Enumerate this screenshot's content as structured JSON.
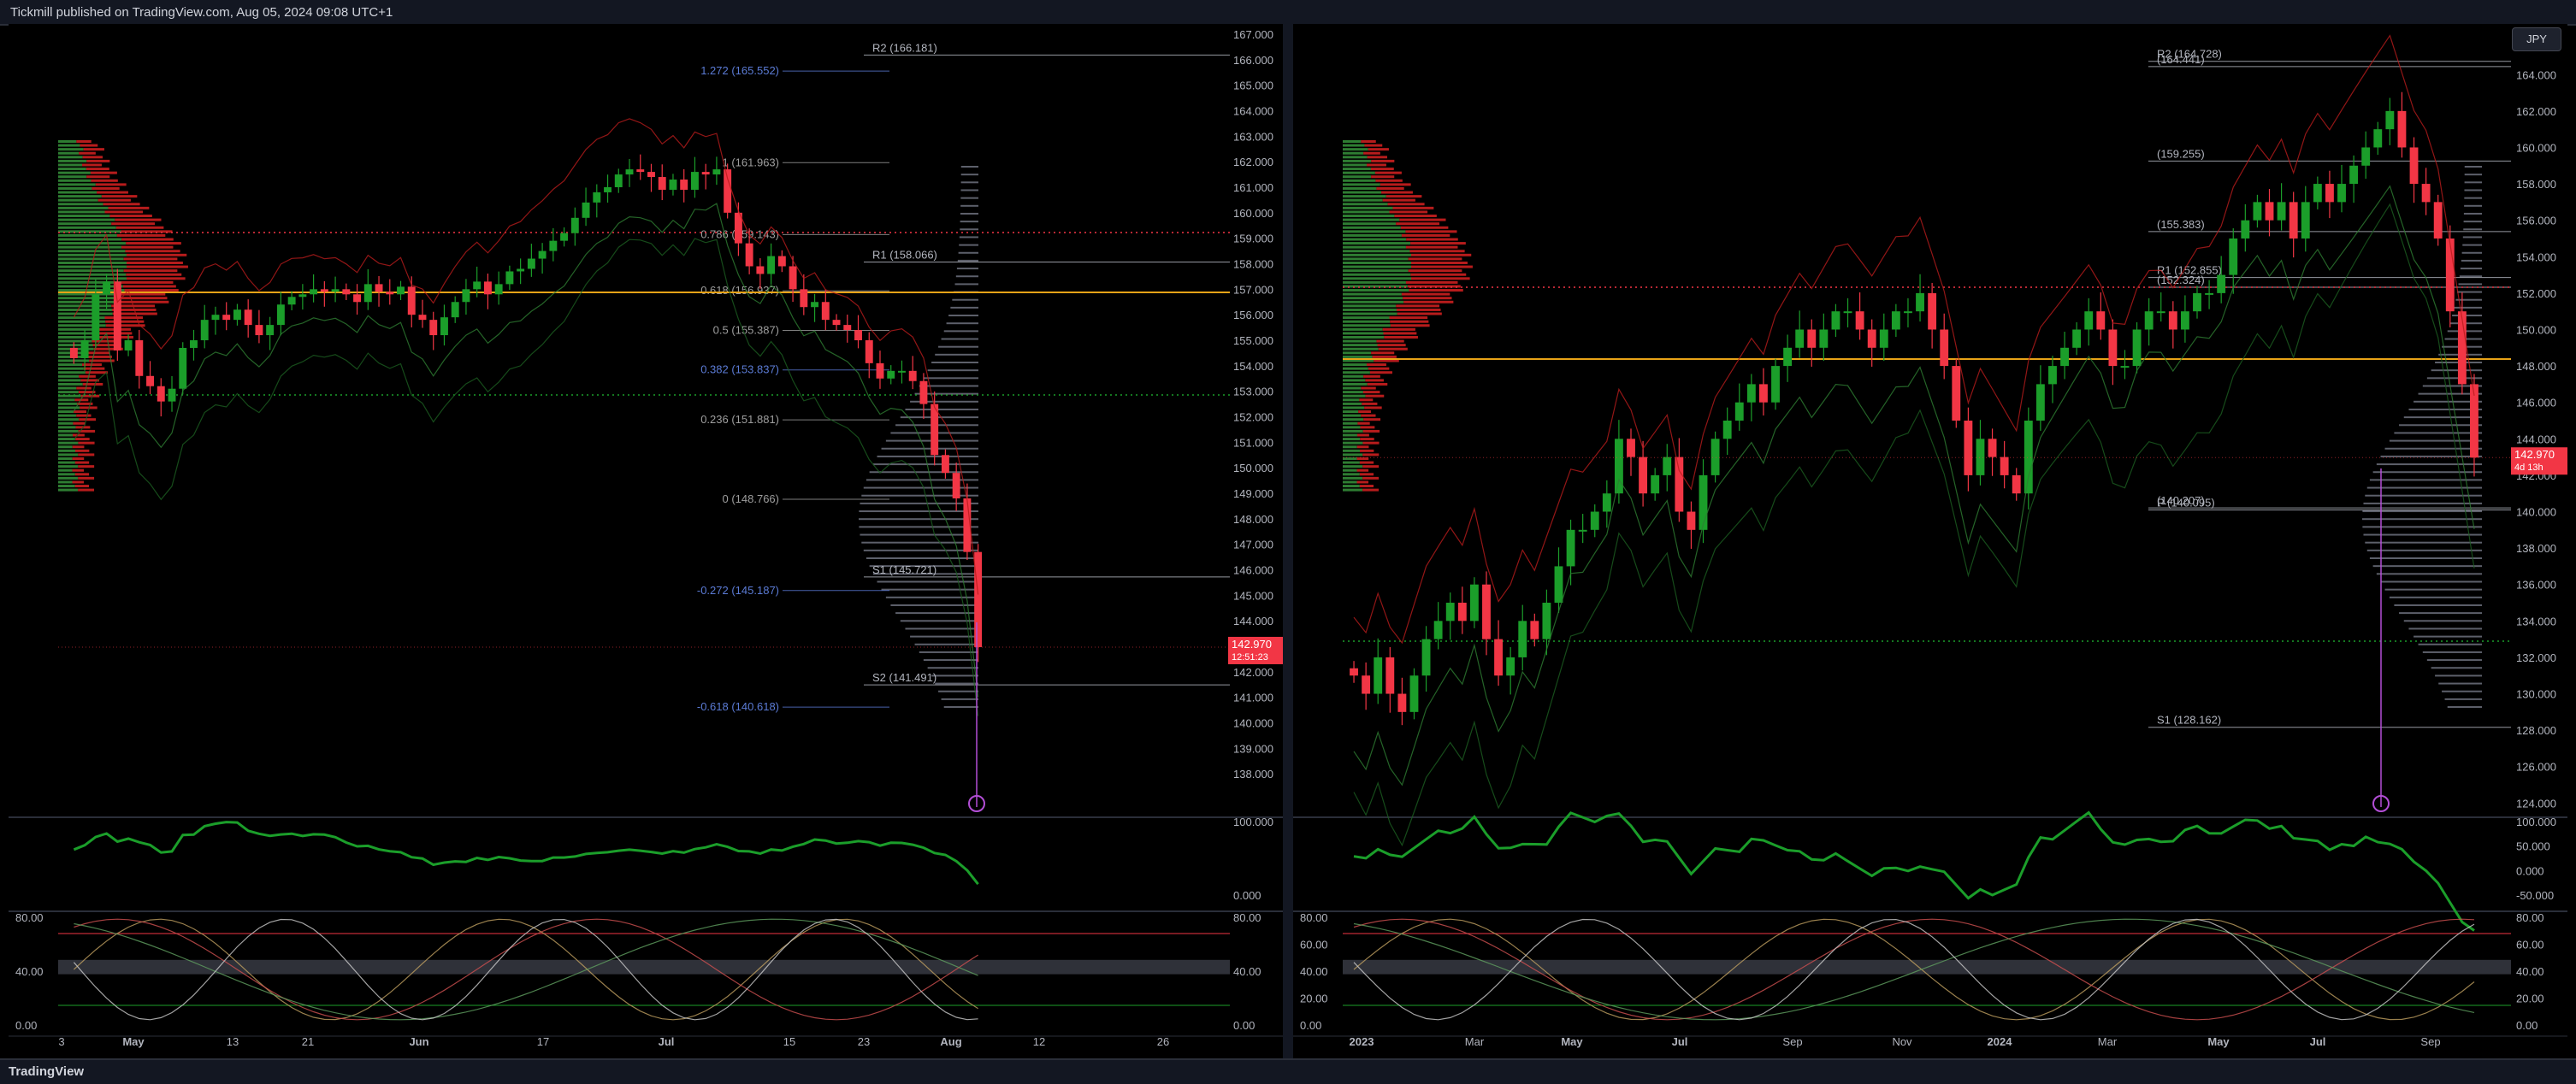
{
  "header": {
    "text": "Tickmill published on TradingView.com, Aug 05, 2024 09:08 UTC+1"
  },
  "footer": {
    "brand": "TradingView"
  },
  "colors": {
    "up": "#089981",
    "green": "#1b9e2a",
    "red": "#f23645",
    "gold": "#e8a317",
    "purple": "#b34ed6",
    "blue": "#2962ff"
  },
  "chart_data": [
    {
      "type": "candlestick",
      "panel": "left",
      "yaxis": {
        "min": 136.5,
        "max": 167.2,
        "ticks": [
          "167.000",
          "166.000",
          "165.000",
          "164.000",
          "163.000",
          "162.000",
          "161.000",
          "160.000",
          "159.000",
          "158.000",
          "157.000",
          "156.000",
          "155.000",
          "154.000",
          "153.000",
          "152.000",
          "151.000",
          "150.000",
          "149.000",
          "148.000",
          "147.000",
          "146.000",
          "145.000",
          "144.000",
          "143.000",
          "142.000",
          "141.000",
          "140.000",
          "139.000",
          "138.000"
        ]
      },
      "xaxis": {
        "labels": [
          "3",
          "May",
          "13",
          "21",
          "Jun",
          "17",
          "Jul",
          "15",
          "23",
          "Aug",
          "12",
          "26"
        ]
      },
      "price_label": {
        "value": "142.970",
        "countdown": "12:51:23"
      },
      "levels": [
        {
          "label": "R2 (166.181)",
          "price": 166.181
        },
        {
          "label": "R1 (158.066)",
          "price": 158.066
        },
        {
          "label": "S1 (145.721)",
          "price": 145.721
        },
        {
          "label": "S2 (141.491)",
          "price": 141.491
        }
      ],
      "fib": [
        {
          "label": "1.272 (165.552)",
          "price": 165.552
        },
        {
          "label": "1 (161.963)",
          "price": 161.963
        },
        {
          "label": "0.786 (159.143)",
          "price": 159.143
        },
        {
          "label": "0.618 (156.937)",
          "price": 156.937
        },
        {
          "label": "0.5 (155.387)",
          "price": 155.387
        },
        {
          "label": "0.382 (153.837)",
          "price": 153.837
        },
        {
          "label": "0.236 (151.881)",
          "price": 151.881
        },
        {
          "label": "0 (148.766)",
          "price": 148.766
        },
        {
          "label": "-0.272 (145.187)",
          "price": 145.187
        },
        {
          "label": "-0.618 (140.618)",
          "price": 140.618
        }
      ],
      "closes": [
        154.3,
        155.0,
        156.8,
        157.3,
        154.6,
        155.0,
        153.6,
        153.2,
        152.6,
        153.1,
        154.7,
        155.0,
        155.8,
        156.0,
        155.8,
        156.2,
        155.6,
        155.2,
        155.6,
        156.4,
        156.7,
        156.8,
        157.0,
        156.9,
        157.0,
        156.8,
        156.5,
        157.2,
        156.9,
        156.8,
        157.1,
        156.0,
        155.8,
        155.2,
        155.9,
        156.5,
        157.0,
        157.3,
        156.8,
        157.2,
        157.7,
        157.8,
        158.2,
        158.5,
        158.9,
        159.2,
        159.8,
        160.4,
        160.8,
        161.0,
        161.5,
        161.7,
        161.6,
        161.4,
        160.9,
        161.3,
        160.9,
        161.6,
        161.5,
        161.7,
        160.0,
        158.8,
        157.9,
        157.6,
        158.3,
        157.9,
        157.0,
        156.3,
        156.5,
        155.8,
        155.6,
        155.4,
        155.0,
        154.1,
        153.5,
        153.8,
        153.8,
        153.4,
        152.5,
        150.5,
        149.8,
        148.8,
        146.7,
        142.97
      ],
      "lower_panel_1": {
        "ticks": [
          "100.000",
          "0.000"
        ]
      },
      "lower_panel_2": {
        "ticks": [
          "80.00",
          "40.00",
          "0.00"
        ]
      }
    },
    {
      "type": "candlestick",
      "panel": "right",
      "currency": "JPY",
      "yaxis": {
        "min": 123.5,
        "max": 166.5,
        "ticks": [
          "164.000",
          "162.000",
          "160.000",
          "158.000",
          "156.000",
          "154.000",
          "152.000",
          "150.000",
          "148.000",
          "146.000",
          "144.000",
          "142.000",
          "140.000",
          "138.000",
          "136.000",
          "134.000",
          "132.000",
          "130.000",
          "128.000",
          "126.000",
          "124.000"
        ]
      },
      "xaxis": {
        "labels": [
          "2023",
          "Mar",
          "May",
          "Jul",
          "Sep",
          "Nov",
          "2024",
          "Mar",
          "May",
          "Jul",
          "Sep"
        ]
      },
      "price_label": {
        "value": "142.970",
        "countdown": "4d 13h"
      },
      "levels": [
        {
          "label": "R2 (164.728)",
          "price": 164.728
        },
        {
          "label": "(164.441)",
          "price": 164.441
        },
        {
          "label": "(159.255)",
          "price": 159.255
        },
        {
          "label": "(155.383)",
          "price": 155.383
        },
        {
          "label": "R1 (152.855)",
          "price": 152.855
        },
        {
          "label": "(152.324)",
          "price": 152.324
        },
        {
          "label": "P (140.095)",
          "price": 140.095
        },
        {
          "label": "(140.207)",
          "price": 140.207
        },
        {
          "label": "S1 (128.162)",
          "price": 128.162
        }
      ],
      "closes": [
        131,
        130,
        132,
        130,
        129,
        131,
        133,
        134,
        135,
        134,
        136,
        133,
        131,
        132,
        134,
        133,
        135,
        137,
        139,
        139,
        140,
        141,
        144,
        143,
        141,
        142,
        143,
        140,
        139,
        142,
        144,
        145,
        146,
        147,
        146,
        148,
        149,
        150,
        149,
        150,
        151,
        151,
        150,
        149,
        150,
        151,
        151,
        152,
        150,
        148,
        145,
        142,
        144,
        143,
        142,
        141,
        145,
        147,
        148,
        149,
        150,
        151,
        150,
        148,
        148,
        150,
        151,
        151,
        150,
        151,
        152,
        152,
        153,
        155,
        156,
        157,
        156,
        157,
        155,
        157,
        158,
        157,
        158,
        159,
        160,
        161,
        162,
        160,
        158,
        157,
        155,
        151,
        147,
        142.97
      ],
      "lower_panel_1": {
        "ticks": [
          "100.000",
          "50.000",
          "0.000",
          "-50.000"
        ]
      },
      "lower_panel_2": {
        "ticks": [
          "80.00",
          "60.00",
          "40.00",
          "20.00",
          "0.00"
        ]
      }
    }
  ]
}
